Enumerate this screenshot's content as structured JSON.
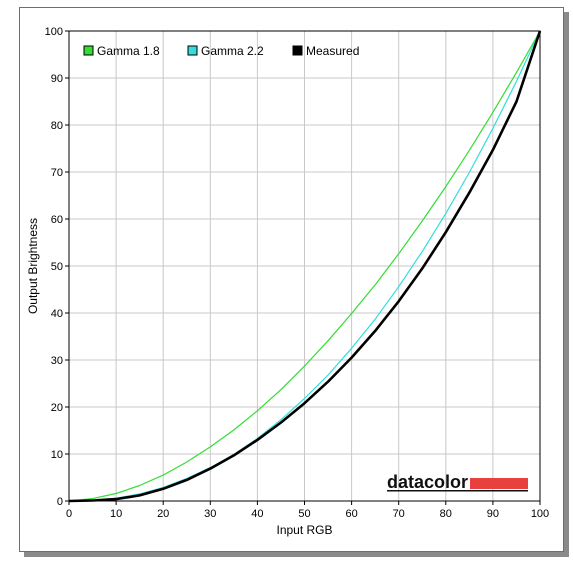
{
  "chart_data": {
    "type": "line",
    "title": "",
    "xlabel": "Input RGB",
    "ylabel": "Output Brightness",
    "xlim": [
      0,
      100
    ],
    "ylim": [
      0,
      100
    ],
    "xticks": [
      "0",
      "10",
      "20",
      "30",
      "40",
      "50",
      "60",
      "70",
      "80",
      "90",
      "100"
    ],
    "yticks": [
      "0",
      "10",
      "20",
      "30",
      "40",
      "50",
      "60",
      "70",
      "80",
      "90",
      "100"
    ],
    "grid": true,
    "legend_position": "top-left",
    "series": [
      {
        "name": "Gamma 1.8",
        "color": "#33dd33",
        "x": [
          0,
          5,
          10,
          15,
          20,
          25,
          30,
          35,
          40,
          45,
          50,
          55,
          60,
          65,
          70,
          75,
          80,
          85,
          90,
          95,
          100
        ],
        "y": [
          0,
          0.5,
          1.6,
          3.3,
          5.5,
          8.3,
          11.5,
          15.1,
          19.2,
          23.7,
          28.7,
          34.1,
          39.9,
          46.0,
          52.6,
          59.6,
          66.9,
          74.6,
          82.7,
          91.2,
          100
        ]
      },
      {
        "name": "Gamma 2.2",
        "color": "#33dddd",
        "x": [
          0,
          5,
          10,
          15,
          20,
          25,
          30,
          35,
          40,
          45,
          50,
          55,
          60,
          65,
          70,
          75,
          80,
          85,
          90,
          95,
          100
        ],
        "y": [
          0,
          0.1,
          0.6,
          1.5,
          2.9,
          4.8,
          7.1,
          9.9,
          13.3,
          17.3,
          21.8,
          26.8,
          32.5,
          38.7,
          45.6,
          53.1,
          61.2,
          69.9,
          79.3,
          89.3,
          100
        ]
      },
      {
        "name": "Measured",
        "color": "#000000",
        "x": [
          0,
          5,
          10,
          15,
          20,
          25,
          30,
          35,
          40,
          45,
          50,
          55,
          60,
          65,
          70,
          75,
          80,
          85,
          90,
          95,
          100
        ],
        "y": [
          0,
          0.1,
          0.4,
          1.2,
          2.6,
          4.5,
          6.9,
          9.7,
          13.0,
          16.7,
          20.8,
          25.4,
          30.5,
          36.2,
          42.5,
          49.5,
          57.2,
          65.6,
          74.7,
          85.0,
          100
        ]
      }
    ]
  },
  "brand": {
    "name": "datacolor",
    "bar_color": "#e8403c"
  }
}
